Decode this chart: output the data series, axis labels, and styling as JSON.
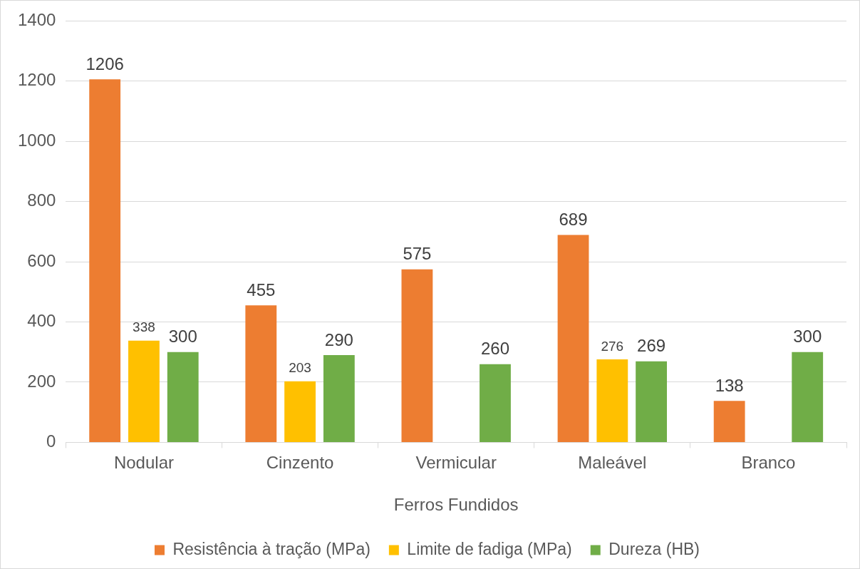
{
  "chart_data": {
    "type": "bar",
    "xlabel": "Ferros Fundidos",
    "categories": [
      "Nodular",
      "Cinzento",
      "Vermicular",
      "Maleável",
      "Branco"
    ],
    "series": [
      {
        "name": "Resistência à tração (MPa)",
        "color": "#ed7d31",
        "values": [
          1206,
          455,
          575,
          689,
          138
        ]
      },
      {
        "name": "Limite de fadiga (MPa)",
        "color": "#ffc000",
        "values": [
          338,
          203,
          null,
          276,
          null
        ]
      },
      {
        "name": "Dureza (HB)",
        "color": "#70ad47",
        "values": [
          300,
          290,
          260,
          269,
          300
        ]
      }
    ],
    "ylim": [
      0,
      1400
    ],
    "yticks": [
      0,
      200,
      400,
      600,
      800,
      1000,
      1200,
      1400
    ],
    "grid": "y",
    "legend": "bottom",
    "data_labels": true
  }
}
